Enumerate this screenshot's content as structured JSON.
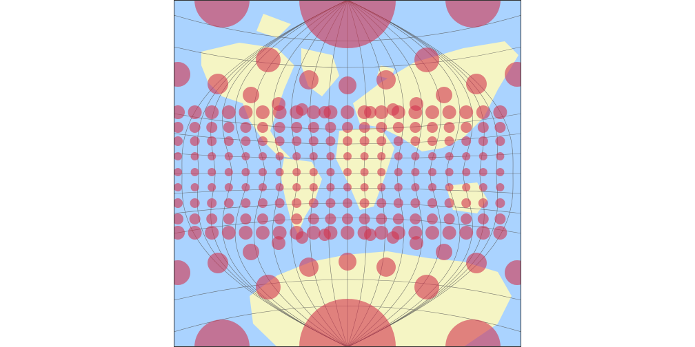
{
  "map": {
    "colors": {
      "ocean": "#aad3ff",
      "land": "#f5f5c4",
      "graticule": "#555555",
      "tissot_fill": "#d2334f",
      "tissot_opacity": 0.6,
      "frame": "#333333"
    },
    "features": [
      "graticule",
      "tissot-indicatrices",
      "coastlines"
    ]
  }
}
